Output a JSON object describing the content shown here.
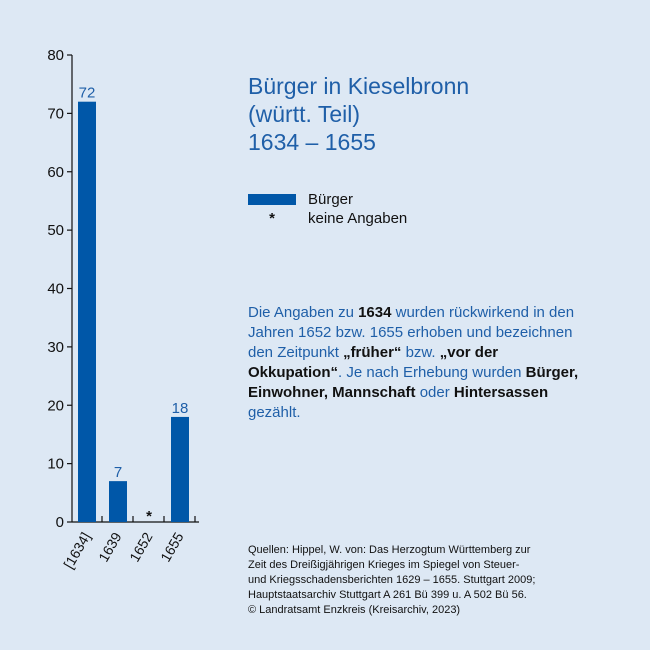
{
  "chart_data": {
    "type": "bar",
    "categories": [
      "[1634]",
      "1639",
      "1652",
      "1655"
    ],
    "values": [
      72,
      7,
      null,
      18
    ],
    "value_labels": [
      "72",
      "7",
      "*",
      "18"
    ],
    "ylim": [
      0,
      80
    ],
    "yticks": [
      0,
      10,
      20,
      30,
      40,
      50,
      60,
      70,
      80
    ],
    "bar_color": "#0057a8",
    "label_color": "#1f5fa8",
    "grid": false
  },
  "title": {
    "line1": "Bürger in Kieselbronn",
    "line2": "(württ. Teil)",
    "line3": "1634 – 1655"
  },
  "legend": {
    "bar_label": "Bürger",
    "star_symbol": "*",
    "star_label": "keine Angaben"
  },
  "note": {
    "p1": "Die Angaben zu ",
    "b1": "1634",
    "p2": " wurden rückwirkend in den Jahren 1652 bzw. 1655 erhoben und bezeichnen den Zeitpunkt ",
    "b2": "„früher“",
    "p3": " bzw. ",
    "b3": "„vor der Okkupation“",
    "p4": ". Je nach Erhebung wurden ",
    "b4": "Bürger, Einwohner, Mannschaft",
    "p5": " oder ",
    "b5": "Hintersassen",
    "p6": " gezählt."
  },
  "sources": {
    "line1": "Quellen: Hippel, W. von: Das Herzogtum Württemberg zur",
    "line2": "Zeit des Dreißigjährigen Krieges im Spiegel von Steuer-",
    "line3": "und Kriegsschadensberichten 1629 – 1655. Stuttgart 2009;",
    "line4": "Hauptstaatsarchiv Stuttgart A 261 Bü 399 u. A 502 Bü 56.",
    "line5": "© Landratsamt Enzkreis (Kreisarchiv, 2023)"
  }
}
